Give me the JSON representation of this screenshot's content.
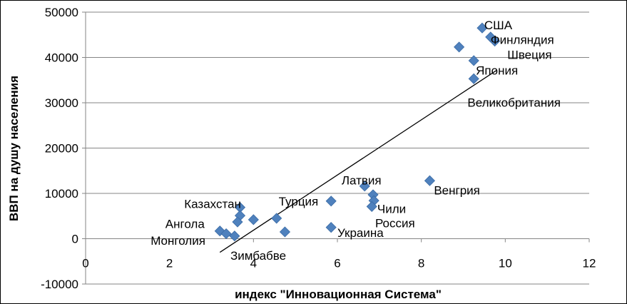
{
  "chart_data": {
    "type": "scatter",
    "title": "",
    "xlabel": "индекс \"Инновационная Система\"",
    "ylabel": "ВВП на душу населения",
    "xlim": [
      0,
      12
    ],
    "ylim": [
      -10000,
      50000
    ],
    "x_ticks": [
      "0",
      "2",
      "4",
      "6",
      "8",
      "10",
      "12"
    ],
    "y_ticks": [
      "-10000",
      "0",
      "10000",
      "20000",
      "30000",
      "40000",
      "50000"
    ],
    "grid": "horizontal",
    "legend": "none",
    "marker": "diamond",
    "marker_color": "#4F81BD",
    "points": [
      {
        "x": 9.45,
        "y": 46500
      },
      {
        "x": 9.65,
        "y": 44500
      },
      {
        "x": 9.75,
        "y": 43600
      },
      {
        "x": 8.9,
        "y": 42300
      },
      {
        "x": 9.25,
        "y": 39300
      },
      {
        "x": 9.25,
        "y": 35300
      },
      {
        "x": 8.2,
        "y": 12800
      },
      {
        "x": 6.65,
        "y": 11600
      },
      {
        "x": 6.85,
        "y": 9700
      },
      {
        "x": 6.87,
        "y": 8400
      },
      {
        "x": 6.82,
        "y": 7100
      },
      {
        "x": 5.85,
        "y": 8300
      },
      {
        "x": 5.85,
        "y": 2500
      },
      {
        "x": 4.75,
        "y": 1500
      },
      {
        "x": 4.55,
        "y": 4500
      },
      {
        "x": 4.0,
        "y": 4200
      },
      {
        "x": 3.68,
        "y": 6900
      },
      {
        "x": 3.68,
        "y": 5100
      },
      {
        "x": 3.62,
        "y": 3700
      },
      {
        "x": 3.2,
        "y": 1700
      },
      {
        "x": 3.35,
        "y": 1100
      },
      {
        "x": 3.55,
        "y": 600
      }
    ],
    "point_labels": [
      {
        "text": "США",
        "x": 9.5,
        "y": 47200
      },
      {
        "text": "Финляндия",
        "x": 9.65,
        "y": 43900
      },
      {
        "text": "Швеция",
        "x": 10.05,
        "y": 40600
      },
      {
        "text": "Япония",
        "x": 9.3,
        "y": 37200
      },
      {
        "text": "Великобритания",
        "x": 9.1,
        "y": 30100
      },
      {
        "text": "Венгрия",
        "x": 8.3,
        "y": 10700
      },
      {
        "text": "Латвия",
        "x": 6.1,
        "y": 12900
      },
      {
        "text": "Чили",
        "x": 6.95,
        "y": 6600
      },
      {
        "text": "Россия",
        "x": 6.9,
        "y": 3500
      },
      {
        "text": "Украина",
        "x": 6.0,
        "y": 1300
      },
      {
        "text": "Турция",
        "x": 4.6,
        "y": 8300
      },
      {
        "text": "Казахстан",
        "x": 2.35,
        "y": 7700
      },
      {
        "text": "Ангола",
        "x": 1.9,
        "y": 3300
      },
      {
        "text": "Монголия",
        "x": 1.55,
        "y": -400
      },
      {
        "text": "Зимбабве",
        "x": 3.45,
        "y": -3700
      }
    ],
    "trendline": {
      "x": [
        3.2,
        9.8
      ],
      "y": [
        -3000,
        37200
      ]
    }
  }
}
